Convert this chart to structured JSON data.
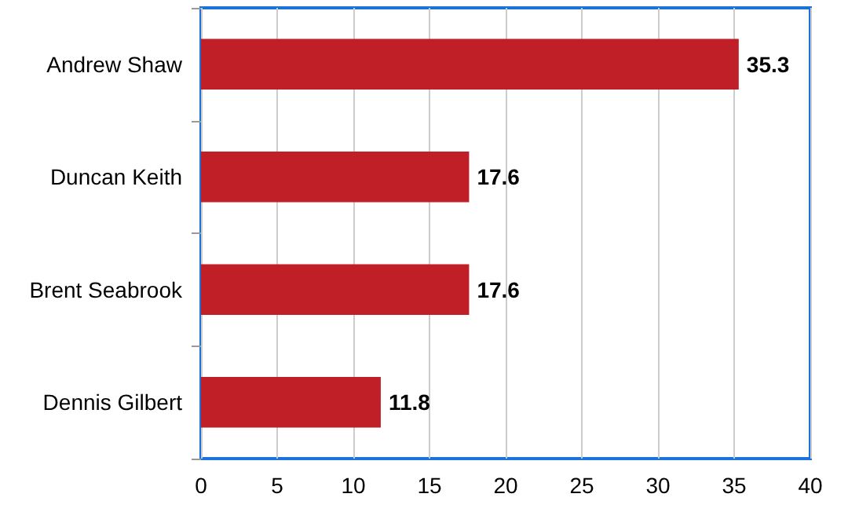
{
  "chart_data": {
    "type": "bar",
    "orientation": "horizontal",
    "categories": [
      "Andrew Shaw",
      "Duncan Keith",
      "Brent Seabrook",
      "Dennis Gilbert"
    ],
    "values": [
      35.3,
      17.6,
      17.6,
      11.8
    ],
    "color": "#c01f27",
    "xlim": [
      0,
      40
    ],
    "xticks": [
      0,
      5,
      10,
      15,
      20,
      25,
      30,
      35,
      40
    ],
    "grid": "x",
    "data_labels": true
  }
}
